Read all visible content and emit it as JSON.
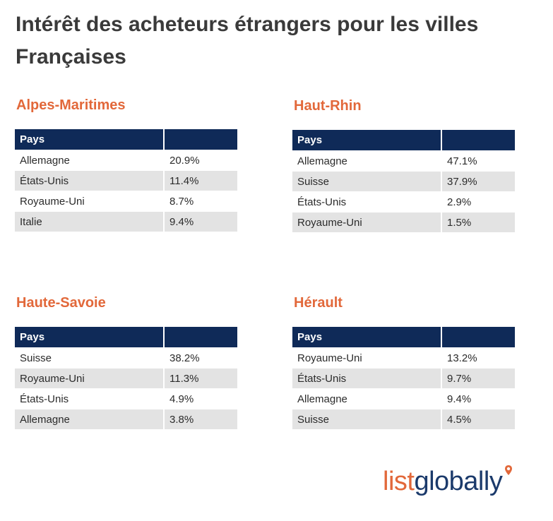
{
  "title": "Intérêt des acheteurs étrangers pour les villes Françaises",
  "colors": {
    "region_title": "#e2683a",
    "header_bg": "#0f2a58",
    "row_alt_bg": "#e3e3e3",
    "logo_list": "#e2683a",
    "logo_globally": "#1b3a6b"
  },
  "chart_data": [
    {
      "type": "table",
      "title": "Alpes-Maritimes",
      "columns": [
        "Pays",
        ""
      ],
      "rows": [
        [
          "Allemagne",
          "20.9%"
        ],
        [
          "États-Unis",
          "11.4%"
        ],
        [
          "Royaume-Uni",
          "8.7%"
        ],
        [
          "Italie",
          "9.4%"
        ]
      ]
    },
    {
      "type": "table",
      "title": "Haut-Rhin",
      "columns": [
        "Pays",
        ""
      ],
      "rows": [
        [
          "Allemagne",
          "47.1%"
        ],
        [
          "Suisse",
          "37.9%"
        ],
        [
          "États-Unis",
          "2.9%"
        ],
        [
          "Royaume-Uni",
          "1.5%"
        ]
      ]
    },
    {
      "type": "table",
      "title": "Haute-Savoie",
      "columns": [
        "Pays",
        ""
      ],
      "rows": [
        [
          "Suisse",
          "38.2%"
        ],
        [
          "Royaume-Uni",
          "11.3%"
        ],
        [
          "États-Unis",
          "4.9%"
        ],
        [
          "Allemagne",
          "3.8%"
        ]
      ]
    },
    {
      "type": "table",
      "title": "Hérault",
      "columns": [
        "Pays",
        ""
      ],
      "rows": [
        [
          "Royaume-Uni",
          "13.2%"
        ],
        [
          "États-Unis",
          "9.7%"
        ],
        [
          "Allemagne",
          "9.4%"
        ],
        [
          "Suisse",
          "4.5%"
        ]
      ]
    }
  ],
  "logo": {
    "part1": "list",
    "part2": "globally",
    "icon": "location-pin-icon"
  }
}
